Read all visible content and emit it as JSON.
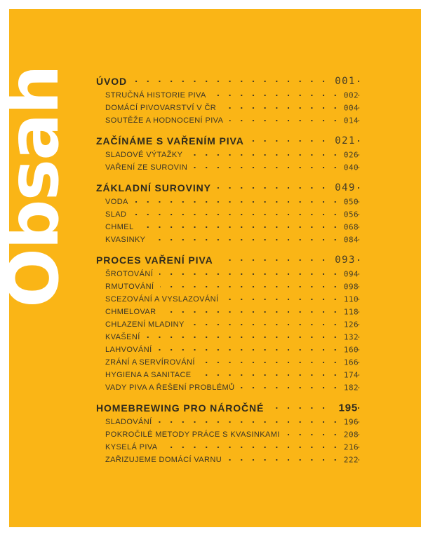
{
  "page": {
    "vertical_title": "Obsah"
  },
  "colors": {
    "background_yellow": "#FAB516",
    "margin_white": "#FFFFFF",
    "heading_text": "#2E2A1E",
    "item_text": "#3A3527",
    "page_number": "#453D26",
    "vertical_title_color": "#FFFFFF"
  },
  "toc": {
    "sections": [
      {
        "label": "ÚVOD",
        "page": "001",
        "items": [
          {
            "label": "STRUČNÁ HISTORIE PIVA",
            "page": "002"
          },
          {
            "label": "DOMÁCÍ PIVOVARSTVÍ V ČR",
            "page": "004"
          },
          {
            "label": "SOUTĚŽE A HODNOCENÍ PIVA",
            "page": "014"
          }
        ]
      },
      {
        "label": "ZAČÍNÁME S VAŘENÍM PIVA",
        "page": "021",
        "items": [
          {
            "label": "SLADOVÉ VÝTAŽKY",
            "page": "026"
          },
          {
            "label": "VAŘENÍ ZE SUROVIN",
            "page": "040"
          }
        ]
      },
      {
        "label": "ZÁKLADNÍ SUROVINY",
        "page": "049",
        "items": [
          {
            "label": "VODA",
            "page": "050"
          },
          {
            "label": "SLAD",
            "page": "056"
          },
          {
            "label": "CHMEL",
            "page": "068"
          },
          {
            "label": "KVASINKY",
            "page": "084"
          }
        ]
      },
      {
        "label": "PROCES VAŘENÍ PIVA",
        "page": "093",
        "items": [
          {
            "label": "ŠROTOVÁNÍ",
            "page": "094"
          },
          {
            "label": "RMUTOVÁNÍ",
            "page": "098"
          },
          {
            "label": "SCEZOVÁNÍ A VYSLAZOVÁNÍ",
            "page": "110"
          },
          {
            "label": "CHMELOVAR",
            "page": "118"
          },
          {
            "label": "CHLAZENÍ MLADINY",
            "page": "126"
          },
          {
            "label": "KVAŠENÍ",
            "page": "132"
          },
          {
            "label": "LAHVOVÁNÍ",
            "page": "160"
          },
          {
            "label": "ZRÁNÍ A SERVÍROVÁNÍ",
            "page": "166"
          },
          {
            "label": "HYGIENA A SANITACE",
            "page": "174"
          },
          {
            "label": "VADY PIVA A ŘEŠENÍ PROBLÉMŮ",
            "page": "182"
          }
        ]
      },
      {
        "label": "HOMEBREWING PRO NÁROČNÉ",
        "page": "195",
        "items": [
          {
            "label": "SLADOVÁNÍ",
            "page": "196"
          },
          {
            "label": "POKROČILÉ METODY PRÁCE S KVASINKAMI",
            "page": "208"
          },
          {
            "label": "KYSELÁ PIVA",
            "page": "216"
          },
          {
            "label": "ZAŘIZUJEME DOMÁCÍ VARNU",
            "page": "222"
          }
        ]
      }
    ]
  }
}
